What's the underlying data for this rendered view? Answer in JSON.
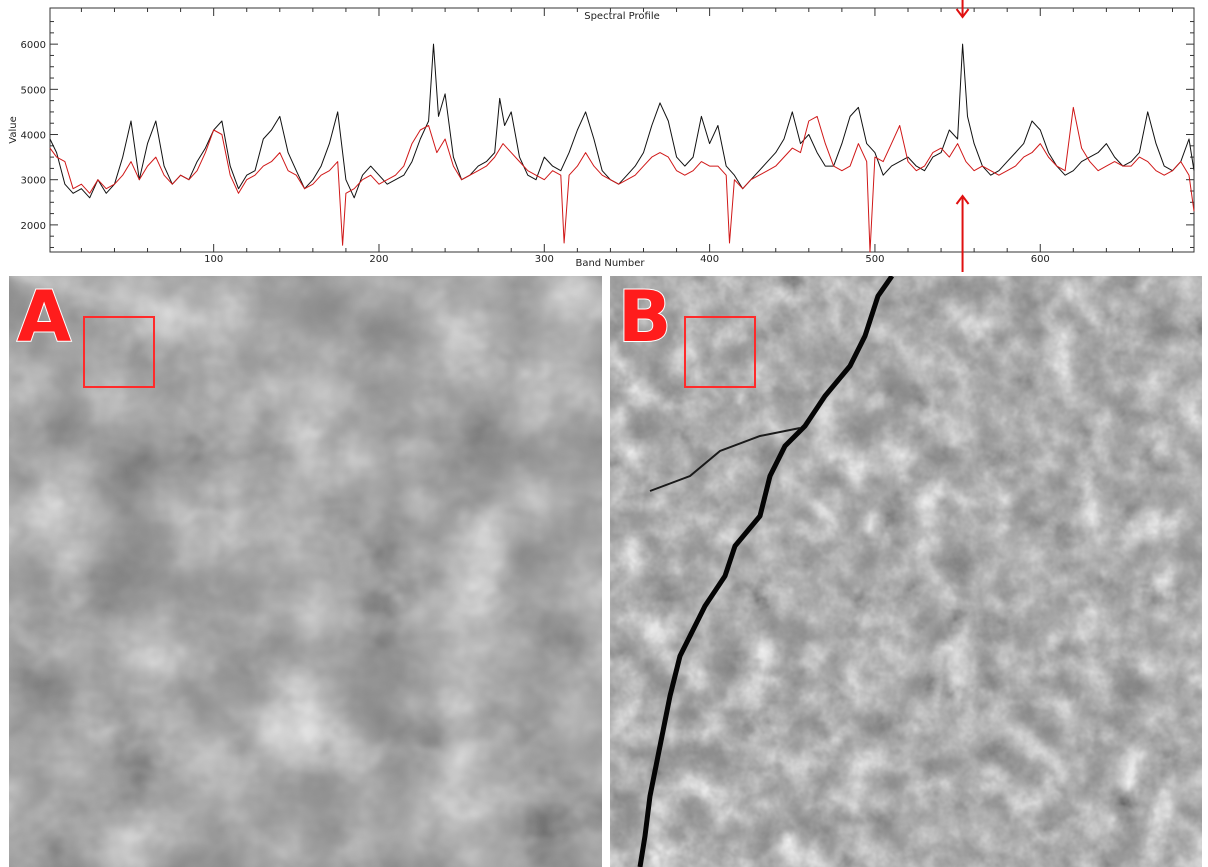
{
  "chart_data": {
    "type": "line",
    "title": "Spectral Profile",
    "xlabel": "Band Number",
    "ylabel": "Value",
    "xlim": [
      1,
      693
    ],
    "ylim": [
      1400,
      6800
    ],
    "xticks": [
      100,
      200,
      300,
      400,
      500,
      600
    ],
    "yticks": [
      2000,
      3000,
      4000,
      5000,
      6000
    ],
    "grid": false,
    "marker_band": 553,
    "series": [
      {
        "color": "#111111",
        "x": [
          1,
          5,
          10,
          15,
          20,
          25,
          30,
          35,
          40,
          45,
          50,
          55,
          60,
          65,
          70,
          75,
          80,
          85,
          90,
          95,
          100,
          105,
          110,
          115,
          120,
          125,
          130,
          135,
          140,
          145,
          150,
          155,
          160,
          165,
          170,
          175,
          180,
          185,
          190,
          195,
          200,
          205,
          210,
          215,
          220,
          225,
          230,
          233,
          236,
          240,
          245,
          250,
          255,
          260,
          265,
          270,
          273,
          276,
          280,
          285,
          290,
          295,
          300,
          305,
          310,
          315,
          320,
          325,
          330,
          335,
          340,
          345,
          350,
          355,
          360,
          365,
          370,
          375,
          380,
          385,
          390,
          395,
          400,
          405,
          410,
          415,
          420,
          425,
          430,
          435,
          440,
          445,
          450,
          455,
          460,
          465,
          470,
          475,
          480,
          485,
          490,
          495,
          500,
          505,
          510,
          515,
          520,
          525,
          530,
          535,
          540,
          545,
          550,
          553,
          556,
          560,
          565,
          570,
          575,
          580,
          585,
          590,
          595,
          600,
          605,
          610,
          615,
          620,
          625,
          630,
          635,
          640,
          645,
          650,
          655,
          660,
          665,
          670,
          675,
          680,
          685,
          690,
          693
        ],
        "y": [
          3900,
          3600,
          2900,
          2700,
          2800,
          2600,
          3000,
          2700,
          2900,
          3500,
          4300,
          3000,
          3800,
          4300,
          3300,
          2900,
          3100,
          3000,
          3400,
          3700,
          4100,
          4300,
          3300,
          2800,
          3100,
          3200,
          3900,
          4100,
          4400,
          3600,
          3200,
          2800,
          3000,
          3300,
          3800,
          4500,
          3000,
          2600,
          3100,
          3300,
          3100,
          2900,
          3000,
          3100,
          3400,
          3900,
          4300,
          6000,
          4400,
          4900,
          3500,
          3000,
          3100,
          3300,
          3400,
          3600,
          4800,
          4200,
          4500,
          3500,
          3100,
          3000,
          3500,
          3300,
          3200,
          3600,
          4100,
          4500,
          3900,
          3200,
          3000,
          2900,
          3100,
          3300,
          3600,
          4200,
          4700,
          4300,
          3500,
          3300,
          3500,
          4400,
          3800,
          4200,
          3300,
          3100,
          2800,
          3000,
          3200,
          3400,
          3600,
          3900,
          4500,
          3800,
          4000,
          3600,
          3300,
          3300,
          3800,
          4400,
          4600,
          3800,
          3600,
          3100,
          3300,
          3400,
          3500,
          3300,
          3200,
          3500,
          3600,
          4100,
          3900,
          6000,
          4400,
          3800,
          3300,
          3100,
          3200,
          3400,
          3600,
          3800,
          4300,
          4100,
          3600,
          3300,
          3100,
          3200,
          3400,
          3500,
          3600,
          3800,
          3500,
          3300,
          3400,
          3600,
          4500,
          3800,
          3300,
          3200,
          3400,
          3900,
          3200
        ]
      },
      {
        "color": "#d01818",
        "x": [
          1,
          5,
          10,
          15,
          20,
          25,
          30,
          35,
          40,
          45,
          50,
          55,
          60,
          65,
          70,
          75,
          80,
          85,
          90,
          95,
          100,
          105,
          110,
          115,
          120,
          125,
          130,
          135,
          140,
          145,
          150,
          155,
          160,
          165,
          170,
          175,
          178,
          180,
          185,
          190,
          195,
          200,
          205,
          210,
          215,
          220,
          225,
          230,
          235,
          240,
          245,
          250,
          255,
          260,
          265,
          270,
          275,
          280,
          285,
          290,
          295,
          300,
          305,
          310,
          312,
          315,
          320,
          325,
          330,
          335,
          340,
          345,
          350,
          355,
          360,
          365,
          370,
          375,
          380,
          385,
          390,
          395,
          400,
          405,
          410,
          412,
          415,
          420,
          425,
          430,
          435,
          440,
          445,
          450,
          455,
          460,
          465,
          470,
          475,
          480,
          485,
          490,
          495,
          497,
          500,
          505,
          510,
          515,
          520,
          525,
          530,
          535,
          540,
          545,
          550,
          555,
          560,
          565,
          570,
          575,
          580,
          585,
          590,
          595,
          600,
          605,
          610,
          615,
          620,
          625,
          630,
          635,
          640,
          645,
          650,
          655,
          660,
          665,
          670,
          675,
          680,
          685,
          690,
          693
        ],
        "y": [
          3700,
          3500,
          3400,
          2800,
          2900,
          2700,
          3000,
          2800,
          2900,
          3100,
          3400,
          3000,
          3300,
          3500,
          3100,
          2900,
          3100,
          3000,
          3200,
          3600,
          4100,
          4000,
          3100,
          2700,
          3000,
          3100,
          3300,
          3400,
          3600,
          3200,
          3100,
          2800,
          2900,
          3100,
          3200,
          3400,
          1550,
          2700,
          2800,
          3000,
          3100,
          2900,
          3000,
          3100,
          3300,
          3800,
          4100,
          4200,
          3600,
          3900,
          3300,
          3000,
          3100,
          3200,
          3300,
          3500,
          3800,
          3600,
          3400,
          3200,
          3100,
          3000,
          3200,
          3100,
          1600,
          3100,
          3300,
          3600,
          3300,
          3100,
          3000,
          2900,
          3000,
          3100,
          3300,
          3500,
          3600,
          3500,
          3200,
          3100,
          3200,
          3400,
          3300,
          3300,
          3100,
          1600,
          3000,
          2800,
          3000,
          3100,
          3200,
          3300,
          3500,
          3700,
          3600,
          4300,
          4400,
          3800,
          3300,
          3200,
          3300,
          3800,
          3400,
          1400,
          3500,
          3400,
          3800,
          4200,
          3400,
          3200,
          3300,
          3600,
          3700,
          3500,
          3800,
          3400,
          3200,
          3300,
          3200,
          3100,
          3200,
          3300,
          3500,
          3600,
          3800,
          3500,
          3300,
          3200,
          4600,
          3700,
          3400,
          3200,
          3300,
          3400,
          3300,
          3300,
          3500,
          3400,
          3200,
          3100,
          3200,
          3400,
          3100,
          2300
        ]
      }
    ]
  },
  "panels": {
    "a": {
      "label": "A"
    },
    "b": {
      "label": "B"
    }
  },
  "colors": {
    "accent": "#ff1c1c",
    "roi_box": "#ff2a2a"
  }
}
